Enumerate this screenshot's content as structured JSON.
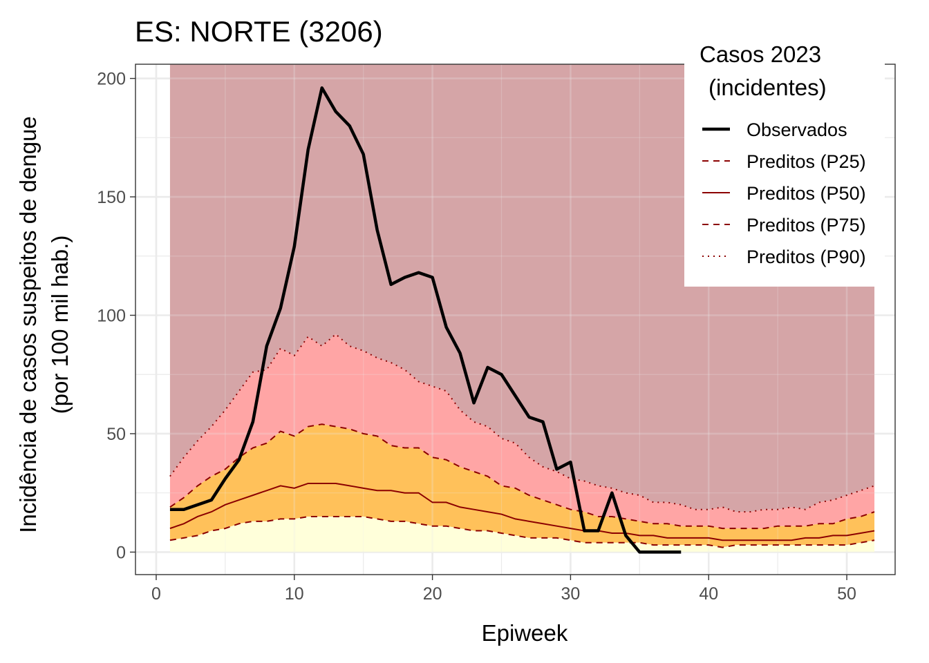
{
  "chart_data": {
    "type": "area",
    "title": "ES: NORTE (3206)",
    "xlabel": "Epiweek",
    "ylabel_line1": "Incidência de casos suspeitos de dengue",
    "ylabel_line2": "(por 100 mil hab.)",
    "xlim": [
      -1.5,
      53.5
    ],
    "ylim": [
      -9.5,
      206
    ],
    "x_ticks": [
      0,
      10,
      20,
      30,
      40,
      50
    ],
    "x_tick_labels": [
      "0",
      "10",
      "20",
      "30",
      "40",
      "50"
    ],
    "y_ticks": [
      0,
      50,
      100,
      150,
      200
    ],
    "y_tick_labels": [
      "0",
      "50",
      "100",
      "150",
      "200"
    ],
    "grid": true,
    "legend": {
      "title_line1": "Casos 2023",
      "title_line2": "(incidentes)",
      "position": "top-right",
      "entries": [
        "Observados",
        "Preditos (P25)",
        "Preditos (P50)",
        "Preditos (P75)",
        "Preditos (P90)"
      ]
    },
    "colors": {
      "band_0_25": "#FFFFDA",
      "band_25_75": "#FFC15A",
      "band_75_90": "#FFA5A5",
      "band_90_top": "#D5A5A7",
      "pred_line": "#8B0000",
      "observed_line": "#000000",
      "grid": "#EBEBEB",
      "panel_border": "#333333"
    },
    "band_top_value": 206,
    "predicted": {
      "weeks": [
        1,
        2,
        3,
        4,
        5,
        6,
        7,
        8,
        9,
        10,
        11,
        12,
        13,
        14,
        15,
        16,
        17,
        18,
        19,
        20,
        21,
        22,
        23,
        24,
        25,
        26,
        27,
        28,
        29,
        30,
        31,
        32,
        33,
        34,
        35,
        36,
        37,
        38,
        39,
        40,
        41,
        42,
        43,
        44,
        45,
        46,
        47,
        48,
        49,
        50,
        51,
        52
      ],
      "p25": [
        5,
        6,
        7,
        9,
        10,
        12,
        13,
        13,
        14,
        14,
        15,
        15,
        15,
        15,
        15,
        14,
        13,
        13,
        12,
        11,
        11,
        10,
        9,
        9,
        8,
        7,
        6,
        6,
        6,
        5,
        4,
        4,
        4,
        4,
        4,
        3,
        3,
        3,
        3,
        3,
        2,
        3,
        3,
        3,
        3,
        3,
        3,
        3,
        3,
        3,
        4,
        5
      ],
      "p50": [
        10,
        12,
        15,
        17,
        20,
        22,
        24,
        26,
        28,
        27,
        29,
        29,
        29,
        28,
        27,
        26,
        26,
        25,
        25,
        21,
        21,
        19,
        18,
        17,
        16,
        14,
        13,
        12,
        11,
        10,
        9,
        9,
        8,
        8,
        7,
        7,
        6,
        6,
        6,
        6,
        5,
        5,
        5,
        5,
        5,
        5,
        6,
        6,
        7,
        7,
        8,
        9
      ],
      "p75": [
        19,
        23,
        28,
        32,
        35,
        40,
        44,
        46,
        51,
        49,
        53,
        54,
        53,
        52,
        50,
        49,
        45,
        44,
        44,
        40,
        39,
        36,
        34,
        32,
        28,
        27,
        24,
        22,
        20,
        18,
        17,
        15,
        15,
        14,
        13,
        12,
        12,
        11,
        11,
        11,
        10,
        10,
        10,
        10,
        11,
        11,
        11,
        12,
        12,
        14,
        15,
        17
      ],
      "p90": [
        32,
        40,
        47,
        53,
        60,
        68,
        76,
        77,
        86,
        83,
        91,
        87,
        92,
        87,
        85,
        82,
        80,
        77,
        72,
        70,
        68,
        60,
        55,
        53,
        48,
        46,
        40,
        36,
        34,
        31,
        30,
        28,
        27,
        25,
        24,
        21,
        21,
        20,
        18,
        18,
        19,
        17,
        17,
        18,
        18,
        19,
        18,
        21,
        22,
        24,
        26,
        28
      ]
    },
    "observed": {
      "weeks": [
        1,
        2,
        3,
        4,
        5,
        6,
        7,
        8,
        9,
        10,
        11,
        12,
        13,
        14,
        15,
        16,
        17,
        18,
        19,
        20,
        21,
        22,
        23,
        24,
        25,
        26,
        27,
        28,
        29,
        30,
        31,
        32,
        33,
        34,
        35,
        36,
        37,
        38
      ],
      "values": [
        18,
        18,
        20,
        22,
        31,
        39,
        55,
        87,
        103,
        129,
        170,
        196,
        186,
        180,
        168,
        136,
        113,
        116,
        118,
        116,
        95,
        84,
        63,
        78,
        75,
        66,
        57,
        55,
        35,
        38,
        9,
        9,
        25,
        7,
        0,
        0,
        0,
        0
      ]
    }
  }
}
